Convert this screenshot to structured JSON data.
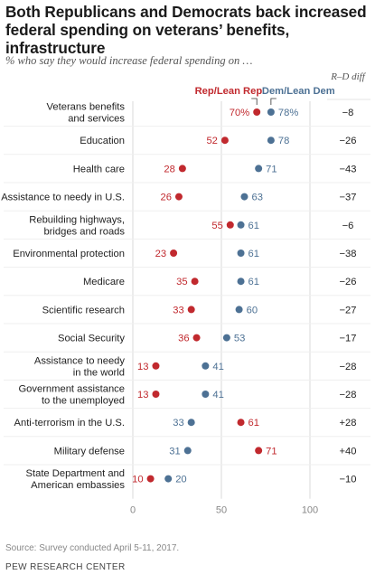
{
  "header": {
    "title": "Both Republicans and Democrats back increased federal spending on veterans’ benefits, infrastructure",
    "subtitle": "% who say they would increase federal spending on …",
    "diff_label": "R–D diff"
  },
  "colors": {
    "rep": "#c1292e",
    "dem": "#4d7194",
    "grid": "#d9d9d9",
    "divider": "#e6e6e6"
  },
  "chart_data": {
    "type": "scatter",
    "title": "Both Republicans and Democrats back increased federal spending on veterans’ benefits, infrastructure",
    "subtitle": "% who say they would increase federal spending on …",
    "xlim": [
      0,
      100
    ],
    "xticks": [
      "0",
      "50",
      "100"
    ],
    "legend_position": "top",
    "series": [
      {
        "name": "Rep/Lean Rep",
        "color": "#c1292e"
      },
      {
        "name": "Dem/Lean Dem",
        "color": "#4d7194"
      }
    ],
    "categories": [
      {
        "label": [
          "Veterans benefits",
          "and services"
        ],
        "rep": 70,
        "dem": 78,
        "rep_label": "70%",
        "dem_label": "78%",
        "diff": "−8"
      },
      {
        "label": [
          "Education"
        ],
        "rep": 52,
        "dem": 78,
        "rep_label": "52",
        "dem_label": "78",
        "diff": "−26"
      },
      {
        "label": [
          "Health care"
        ],
        "rep": 28,
        "dem": 71,
        "rep_label": "28",
        "dem_label": "71",
        "diff": "−43"
      },
      {
        "label": [
          "Assistance to needy in U.S."
        ],
        "rep": 26,
        "dem": 63,
        "rep_label": "26",
        "dem_label": "63",
        "diff": "−37"
      },
      {
        "label": [
          "Rebuilding highways,",
          "bridges and roads"
        ],
        "rep": 55,
        "dem": 61,
        "rep_label": "55",
        "dem_label": "61",
        "diff": "−6"
      },
      {
        "label": [
          "Environmental protection"
        ],
        "rep": 23,
        "dem": 61,
        "rep_label": "23",
        "dem_label": "61",
        "diff": "−38"
      },
      {
        "label": [
          "Medicare"
        ],
        "rep": 35,
        "dem": 61,
        "rep_label": "35",
        "dem_label": "61",
        "diff": "−26"
      },
      {
        "label": [
          "Scientific research"
        ],
        "rep": 33,
        "dem": 60,
        "rep_label": "33",
        "dem_label": "60",
        "diff": "−27"
      },
      {
        "label": [
          "Social Security"
        ],
        "rep": 36,
        "dem": 53,
        "rep_label": "36",
        "dem_label": "53",
        "diff": "−17"
      },
      {
        "label": [
          "Assistance to needy",
          "in the world"
        ],
        "rep": 13,
        "dem": 41,
        "rep_label": "13",
        "dem_label": "41",
        "diff": "−28"
      },
      {
        "label": [
          "Government assistance",
          "to the unemployed"
        ],
        "rep": 13,
        "dem": 41,
        "rep_label": "13",
        "dem_label": "41",
        "diff": "−28"
      },
      {
        "label": [
          "Anti-terrorism in the U.S."
        ],
        "rep": 61,
        "dem": 33,
        "rep_label": "61",
        "dem_label": "33",
        "diff": "+28"
      },
      {
        "label": [
          "Military defense"
        ],
        "rep": 71,
        "dem": 31,
        "rep_label": "71",
        "dem_label": "31",
        "diff": "+40"
      },
      {
        "label": [
          "State Department and",
          "American embassies"
        ],
        "rep": 10,
        "dem": 20,
        "rep_label": "10",
        "dem_label": "20",
        "diff": "−10"
      }
    ]
  },
  "footer": {
    "source": "Source: Survey conducted April 5-11, 2017.",
    "org": "PEW RESEARCH CENTER"
  }
}
